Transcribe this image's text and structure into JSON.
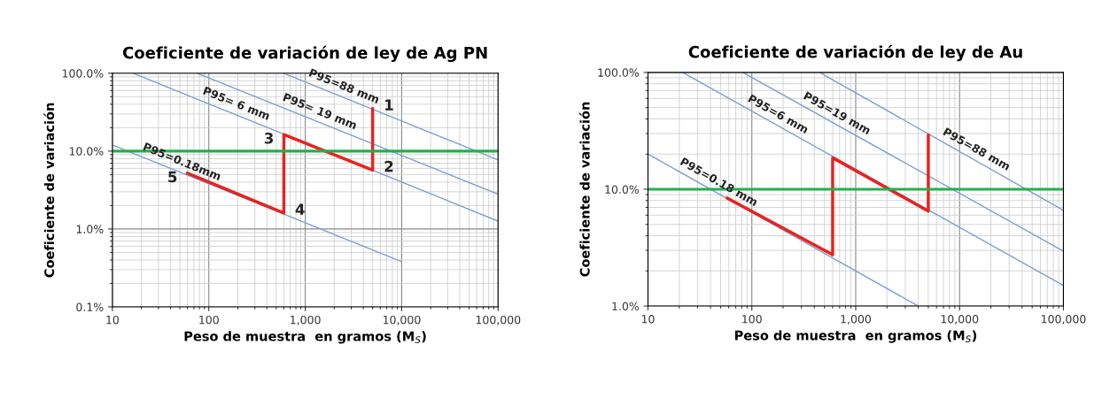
{
  "chart_data": [
    {
      "type": "line",
      "title": "Coeficiente de variación de ley de Ag PN",
      "xlabel": "Peso de muestra  en gramos (M$_{S}$)",
      "ylabel": "Coeficiente de variación",
      "log": "xy",
      "grid": true,
      "marker": "none",
      "xlim": [
        10,
        100000
      ],
      "xticks": [
        10,
        100,
        {
          "value": 1000,
          "label": "1,000"
        },
        {
          "value": 10000,
          "label": "10,000"
        },
        {
          "value": 100000,
          "label": "100,000"
        }
      ],
      "ylim": [
        0.1,
        100
      ],
      "yticks": [
        {
          "value": 0.1,
          "label": "0.1%"
        },
        {
          "value": 1,
          "label": "1.0%"
        },
        {
          "value": 10,
          "label": "10.0%"
        },
        {
          "value": 100,
          "label": "100.0%"
        }
      ],
      "series": [
        {
          "color": "#7f9fcf",
          "x": [
            10,
            10000
          ],
          "values": [
            12,
            0.38
          ]
        },
        {
          "color": "#7f9fcf",
          "x": [
            16.5,
            100000
          ],
          "values": [
            100,
            1.26
          ]
        },
        {
          "color": "#7f9fcf",
          "x": [
            76,
            100000
          ],
          "values": [
            100,
            2.8
          ]
        },
        {
          "color": "#7f9fcf",
          "x": [
            600,
            100000
          ],
          "values": [
            100,
            7.7
          ]
        },
        {
          "color": "#e8231f",
          "x": [
            60,
            600,
            600,
            5000,
            5000
          ],
          "values": [
            5.2,
            1.6,
            16.3,
            5.7,
            35
          ]
        }
      ],
      "ref_lines": [
        {
          "axis": "y",
          "value": 10,
          "color": "#22b04b"
        }
      ],
      "annotations": [
        {
          "text": "P95=88 mm",
          "x": 2300,
          "y": 51
        },
        {
          "text": "P95= 19 mm",
          "x": 1290,
          "y": 24.3
        },
        {
          "text": "P95= 6 mm",
          "x": 176,
          "y": 30.6
        },
        {
          "text": "P95=0.18mm",
          "x": 48,
          "y": 5.48
        },
        {
          "text": "1",
          "x": 5000,
          "y": 35
        },
        {
          "text": "2",
          "x": 5000,
          "y": 5.7
        },
        {
          "text": "3",
          "x": 600,
          "y": 16.3
        },
        {
          "text": "4",
          "x": 600,
          "y": 1.6
        },
        {
          "text": "5",
          "x": 60,
          "y": 5.2
        }
      ]
    },
    {
      "type": "line",
      "title": "Coeficiente de variación de ley de Au",
      "xlabel": "Peso de muestra  en gramos (M$_{S}$)",
      "ylabel": "Coeficiente de variación",
      "log": "xy",
      "grid": true,
      "marker": "none",
      "xlim": [
        10,
        100000
      ],
      "xticks": [
        10,
        100,
        {
          "value": 1000,
          "label": "1,000"
        },
        {
          "value": 10000,
          "label": "10,000"
        },
        {
          "value": 100000,
          "label": "100,000"
        }
      ],
      "ylim": [
        1,
        100
      ],
      "yticks": [
        {
          "value": 1,
          "label": "1.0%"
        },
        {
          "value": 10,
          "label": "10.0%"
        },
        {
          "value": 100,
          "label": "100.0%"
        }
      ],
      "series": [
        {
          "color": "#7f9fcf",
          "x": [
            10,
            4000
          ],
          "values": [
            20,
            1
          ]
        },
        {
          "color": "#7f9fcf",
          "x": [
            21.6,
            100000
          ],
          "values": [
            100,
            1.5
          ]
        },
        {
          "color": "#7f9fcf",
          "x": [
            82,
            100000
          ],
          "values": [
            100,
            2.95
          ]
        },
        {
          "color": "#7f9fcf",
          "x": [
            450,
            100000
          ],
          "values": [
            100,
            6.6
          ]
        },
        {
          "color": "#e8231f",
          "x": [
            58,
            600,
            600,
            5000,
            5000
          ],
          "values": [
            8.4,
            2.75,
            18.6,
            6.5,
            29
          ]
        }
      ],
      "ref_lines": [
        {
          "axis": "y",
          "value": 10,
          "color": "#22b04b"
        }
      ],
      "annotations": [
        {
          "text": "P95=0.18 mm",
          "x": 43,
          "y": 9.64
        },
        {
          "text": "P95=6 mm",
          "x": 160,
          "y": 36.7
        },
        {
          "text": "P95=19 mm",
          "x": 590,
          "y": 37.3
        },
        {
          "text": "P95=88 mm",
          "x": 13000,
          "y": 18.4
        }
      ]
    }
  ]
}
